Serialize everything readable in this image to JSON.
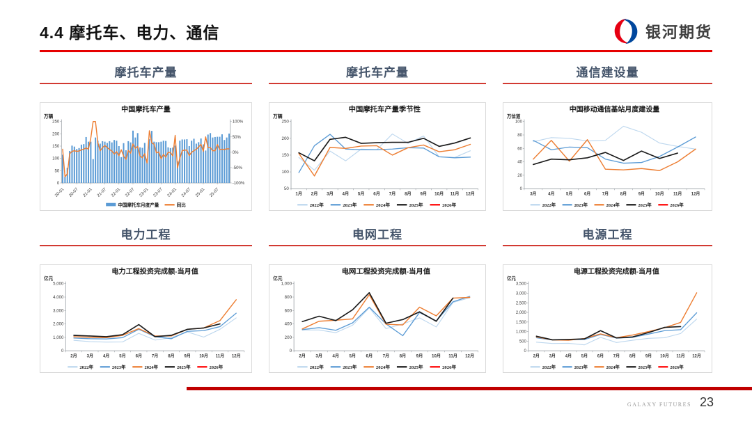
{
  "page": {
    "title": "4.4 摩托车、电力、通信",
    "logo_text": "银河期货",
    "footer_brand": "GALAXY FUTURES",
    "page_number": "23",
    "colors": {
      "accent_red": "#c00000",
      "section_navy": "#44546A"
    }
  },
  "chart_data": [
    {
      "section_title": "摩托车产量",
      "type": "bar+line",
      "title": "中国摩托车产量",
      "unit": "万辆",
      "ml": 30,
      "n": 72,
      "x_sparse": {
        "labels": [
          "20-01",
          "20-07",
          "21-01",
          "21-07",
          "22-01",
          "22-07",
          "23-01",
          "23-07",
          "24-01",
          "24-07",
          "25-01",
          "25-07"
        ],
        "idx": [
          0,
          6,
          12,
          18,
          24,
          30,
          36,
          42,
          48,
          54,
          60,
          66
        ]
      },
      "ylim": [
        0,
        250
      ],
      "yticks": [
        0,
        50,
        100,
        150,
        200,
        250
      ],
      "ytick_labels": [
        "0",
        "50",
        "100",
        "150",
        "200",
        "250"
      ],
      "y2": {
        "lim": [
          -100,
          100
        ],
        "ticks": [
          -100,
          -50,
          0,
          50,
          100
        ],
        "labels": [
          "-100%",
          "-50%",
          "0%",
          "50%",
          "100%"
        ]
      },
      "bars": {
        "name": "中国摩托车月度产量",
        "color": "#5B9BD5",
        "values": [
          115,
          25,
          62,
          130,
          152,
          148,
          138,
          142,
          156,
          158,
          187,
          168,
          168,
          97,
          185,
          172,
          160,
          170,
          168,
          163,
          170,
          165,
          175,
          172,
          150,
          105,
          162,
          133,
          170,
          165,
          213,
          185,
          203,
          145,
          143,
          163,
          98,
          178,
          212,
          168,
          166,
          166,
          168,
          172,
          171,
          145,
          142,
          144,
          152,
          88,
          172,
          177,
          177,
          178,
          150,
          172,
          180,
          160,
          166,
          181,
          157,
          132,
          197,
          203,
          185,
          187,
          188,
          188,
          198,
          175,
          185,
          201
        ]
      },
      "series": [
        {
          "name": "同比",
          "color": "#ED7D31",
          "axis": "right",
          "width": 1.4,
          "values": [
            10,
            -80,
            -70,
            -5,
            3,
            5,
            3,
            4,
            8,
            10,
            14,
            10,
            46,
            100,
            100,
            32,
            5,
            15,
            22,
            15,
            9,
            4,
            -6,
            2,
            -11,
            8,
            -12,
            -23,
            6,
            -3,
            27,
            13,
            19,
            -12,
            -18,
            -5,
            -35,
            70,
            31,
            26,
            -2,
            1,
            -21,
            -7,
            -16,
            0,
            -1,
            -12,
            55,
            -51,
            -19,
            5,
            7,
            7,
            -11,
            0,
            5,
            10,
            17,
            26,
            3,
            50,
            15,
            15,
            5,
            5,
            25,
            9,
            10,
            9,
            11,
            11
          ]
        }
      ],
      "legend": [
        {
          "label": "中国摩托车月度产量",
          "color": "#5B9BD5",
          "type": "bar"
        },
        {
          "label": "同比",
          "color": "#ED7D31",
          "type": "line"
        }
      ]
    },
    {
      "section_title": "摩托车产量",
      "type": "line",
      "title": "中国摩托车产量季节性",
      "unit": "万辆",
      "ml": 30,
      "categories": [
        "1月",
        "2月",
        "3月",
        "4月",
        "5月",
        "6月",
        "7月",
        "8月",
        "9月",
        "10月",
        "11月",
        "12月"
      ],
      "ylim": [
        50,
        250
      ],
      "yticks": [
        50,
        100,
        150,
        200,
        250
      ],
      "ytick_labels": [
        "50",
        "100",
        "150",
        "200",
        "250"
      ],
      "series": [
        {
          "name": "2022年",
          "color": "#BDD7EE",
          "width": 1.1,
          "values": [
            143,
            105,
            162,
            133,
            168,
            166,
            213,
            185,
            207,
            145,
            143,
            163
          ]
        },
        {
          "name": "2023年",
          "color": "#5B9BD5",
          "width": 1.3,
          "values": [
            98,
            178,
            212,
            168,
            166,
            166,
            168,
            172,
            171,
            145,
            142,
            144
          ]
        },
        {
          "name": "2024年",
          "color": "#ED7D31",
          "width": 1.4,
          "values": [
            155,
            88,
            173,
            170,
            177,
            178,
            150,
            172,
            180,
            160,
            166,
            182
          ]
        },
        {
          "name": "2025年",
          "color": "#1a1a1a",
          "width": 1.6,
          "values": [
            157,
            133,
            197,
            203,
            185,
            187,
            188,
            188,
            200,
            176,
            186,
            201
          ]
        },
        {
          "name": "2026年",
          "color": "#FF0000",
          "width": 1.6,
          "values": []
        }
      ],
      "legend": [
        {
          "label": "2022年",
          "color": "#BDD7EE",
          "type": "line"
        },
        {
          "label": "2023年",
          "color": "#5B9BD5",
          "type": "line"
        },
        {
          "label": "2024年",
          "color": "#ED7D31",
          "type": "line"
        },
        {
          "label": "2025年",
          "color": "#1a1a1a",
          "type": "line"
        },
        {
          "label": "2026年",
          "color": "#FF0000",
          "type": "line"
        }
      ]
    },
    {
      "section_title": "通信建设量",
      "type": "line",
      "title": "中国移动通信基站月度建设量",
      "unit": "万信道",
      "ml": 30,
      "categories": [
        "3月",
        "4月",
        "5月",
        "6月",
        "7月",
        "8月",
        "9月",
        "10月",
        "11月",
        "12月"
      ],
      "ylim": [
        0,
        100
      ],
      "yticks": [
        0,
        20,
        40,
        60,
        80,
        100
      ],
      "ytick_labels": [
        "0",
        "20",
        "40",
        "60",
        "80",
        "100"
      ],
      "series": [
        {
          "name": "2022年",
          "color": "#BDD7EE",
          "width": 1.1,
          "values": [
            70,
            76,
            75,
            71,
            72,
            93,
            84,
            68,
            63,
            59
          ]
        },
        {
          "name": "2023年",
          "color": "#5B9BD5",
          "width": 1.3,
          "values": [
            72,
            58,
            62,
            61,
            44,
            38,
            39,
            48,
            62,
            77
          ]
        },
        {
          "name": "2024年",
          "color": "#ED7D31",
          "width": 1.4,
          "values": [
            44,
            72,
            41,
            73,
            29,
            28,
            30,
            27,
            40,
            59
          ]
        },
        {
          "name": "2025年",
          "color": "#1a1a1a",
          "width": 1.6,
          "values": [
            36,
            44,
            43,
            46,
            54,
            42,
            56,
            45,
            53
          ]
        },
        {
          "name": "2026年",
          "color": "#FF0000",
          "width": 1.6,
          "values": []
        }
      ],
      "legend": [
        {
          "label": "2022年",
          "color": "#BDD7EE",
          "type": "line"
        },
        {
          "label": "2023年",
          "color": "#5B9BD5",
          "type": "line"
        },
        {
          "label": "2024年",
          "color": "#ED7D31",
          "type": "line"
        },
        {
          "label": "2025年",
          "color": "#1a1a1a",
          "type": "line"
        },
        {
          "label": "2026年",
          "color": "#FF0000",
          "type": "line"
        }
      ]
    },
    {
      "section_title": "电力工程",
      "type": "line",
      "title": "电力工程投资完成额-当月值",
      "unit": "亿元",
      "ml": 36,
      "categories": [
        "2月",
        "3月",
        "4月",
        "5月",
        "6月",
        "7月",
        "8月",
        "9月",
        "10月",
        "11月",
        "12月"
      ],
      "ylim": [
        0,
        5000
      ],
      "yticks": [
        0,
        1000,
        2000,
        3000,
        4000,
        5000
      ],
      "ytick_labels": [
        "0",
        "1,000",
        "2,000",
        "3,000",
        "4,000",
        "5,000"
      ],
      "series": [
        {
          "name": "2022年",
          "color": "#BDD7EE",
          "width": 1.1,
          "values": [
            780,
            680,
            650,
            660,
            1300,
            800,
            980,
            1400,
            1020,
            1600,
            2450
          ]
        },
        {
          "name": "2023年",
          "color": "#5B9BD5",
          "width": 1.3,
          "values": [
            950,
            900,
            880,
            980,
            1600,
            1050,
            900,
            1450,
            1500,
            1800,
            2800
          ]
        },
        {
          "name": "2024年",
          "color": "#ED7D31",
          "width": 1.4,
          "values": [
            1050,
            1000,
            980,
            1150,
            1650,
            1100,
            1100,
            1600,
            1700,
            2250,
            3800
          ]
        },
        {
          "name": "2025年",
          "color": "#1a1a1a",
          "width": 1.6,
          "values": [
            1150,
            1100,
            1050,
            1200,
            1950,
            1050,
            1150,
            1600,
            1700,
            2000
          ]
        },
        {
          "name": "2026年",
          "color": "#FF0000",
          "width": 1.6,
          "values": []
        }
      ],
      "legend": [
        {
          "label": "2022年",
          "color": "#BDD7EE",
          "type": "line"
        },
        {
          "label": "2023年",
          "color": "#5B9BD5",
          "type": "line"
        },
        {
          "label": "2024年",
          "color": "#ED7D31",
          "type": "line"
        },
        {
          "label": "2025年",
          "color": "#1a1a1a",
          "type": "line"
        },
        {
          "label": "2026年",
          "color": "#FF0000",
          "type": "line"
        }
      ]
    },
    {
      "section_title": "电网工程",
      "type": "line",
      "title": "电网工程投资完成额-当月值",
      "unit": "亿元",
      "ml": 34,
      "categories": [
        "2月",
        "3月",
        "4月",
        "5月",
        "6月",
        "7月",
        "8月",
        "9月",
        "10月",
        "11月",
        "12月"
      ],
      "ylim": [
        0,
        1000
      ],
      "yticks": [
        0,
        200,
        400,
        600,
        800,
        1000
      ],
      "ytick_labels": [
        "0",
        "200",
        "400",
        "600",
        "800",
        "1,000"
      ],
      "series": [
        {
          "name": "2022年",
          "color": "#BDD7EE",
          "width": 1.1,
          "values": [
            310,
            310,
            270,
            380,
            640,
            330,
            400,
            490,
            355,
            720,
            790
          ]
        },
        {
          "name": "2023年",
          "color": "#5B9BD5",
          "width": 1.3,
          "values": [
            315,
            345,
            305,
            415,
            650,
            400,
            225,
            570,
            445,
            730,
            810
          ]
        },
        {
          "name": "2024年",
          "color": "#ED7D31",
          "width": 1.4,
          "values": [
            325,
            440,
            455,
            475,
            835,
            395,
            385,
            650,
            520,
            785,
            795
          ]
        },
        {
          "name": "2025年",
          "color": "#1a1a1a",
          "width": 1.6,
          "values": [
            435,
            515,
            450,
            610,
            865,
            410,
            465,
            580,
            440,
            785
          ]
        },
        {
          "name": "2026年",
          "color": "#FF0000",
          "width": 1.6,
          "values": []
        }
      ],
      "legend": [
        {
          "label": "2022年",
          "color": "#BDD7EE",
          "type": "line"
        },
        {
          "label": "2023年",
          "color": "#5B9BD5",
          "type": "line"
        },
        {
          "label": "2024年",
          "color": "#ED7D31",
          "type": "line"
        },
        {
          "label": "2025年",
          "color": "#1a1a1a",
          "type": "line"
        },
        {
          "label": "2026年",
          "color": "#FF0000",
          "type": "line"
        }
      ]
    },
    {
      "section_title": "电源工程",
      "type": "line",
      "title": "电源工程投资完成额-当月值",
      "unit": "亿元",
      "ml": 36,
      "categories": [
        "2月",
        "3月",
        "4月",
        "5月",
        "6月",
        "7月",
        "8月",
        "9月",
        "10月",
        "11月",
        "12月"
      ],
      "ylim": [
        0,
        3500
      ],
      "yticks": [
        0,
        500,
        1000,
        1500,
        2000,
        2500,
        3000,
        3500
      ],
      "ytick_labels": [
        "0",
        "500",
        "1,000",
        "1,500",
        "2,000",
        "2,500",
        "3,000",
        "3,500"
      ],
      "series": [
        {
          "name": "2022年",
          "color": "#BDD7EE",
          "width": 1.1,
          "values": [
            450,
            380,
            390,
            310,
            700,
            430,
            550,
            650,
            680,
            900,
            1650
          ]
        },
        {
          "name": "2023年",
          "color": "#5B9BD5",
          "width": 1.3,
          "values": [
            680,
            560,
            580,
            590,
            850,
            660,
            700,
            870,
            1050,
            1100,
            1980
          ]
        },
        {
          "name": "2024年",
          "color": "#ED7D31",
          "width": 1.4,
          "values": [
            720,
            570,
            550,
            640,
            880,
            680,
            820,
            1000,
            1200,
            1480,
            3020
          ]
        },
        {
          "name": "2025年",
          "color": "#1a1a1a",
          "width": 1.6,
          "values": [
            760,
            570,
            590,
            620,
            1050,
            670,
            720,
            950,
            1220,
            1260
          ]
        },
        {
          "name": "2026年",
          "color": "#FF0000",
          "width": 1.6,
          "values": []
        }
      ],
      "legend": [
        {
          "label": "2022年",
          "color": "#BDD7EE",
          "type": "line"
        },
        {
          "label": "2023年",
          "color": "#5B9BD5",
          "type": "line"
        },
        {
          "label": "2024年",
          "color": "#ED7D31",
          "type": "line"
        },
        {
          "label": "2025年",
          "color": "#1a1a1a",
          "type": "line"
        },
        {
          "label": "2026年",
          "color": "#FF0000",
          "type": "line"
        }
      ]
    }
  ]
}
